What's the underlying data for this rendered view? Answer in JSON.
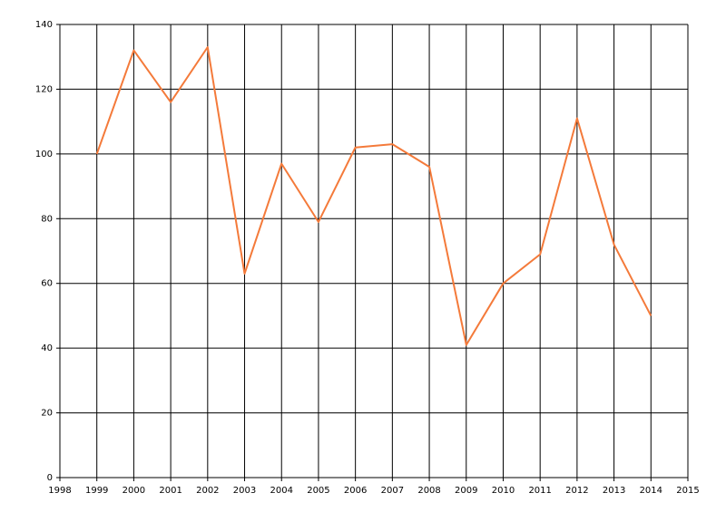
{
  "chart_data": {
    "type": "line",
    "x": [
      1999,
      2000,
      2001,
      2002,
      2003,
      2004,
      2005,
      2006,
      2007,
      2008,
      2009,
      2010,
      2011,
      2012,
      2013,
      2014
    ],
    "series": [
      {
        "color": "#f47a3a",
        "values": [
          100,
          132,
          116,
          133,
          63,
          97,
          79,
          102,
          103,
          96,
          41,
          60,
          69,
          111,
          72,
          50
        ]
      }
    ],
    "xlim": [
      1998,
      2015
    ],
    "xticks": [
      1998,
      1999,
      2000,
      2001,
      2002,
      2003,
      2004,
      2005,
      2006,
      2007,
      2008,
      2009,
      2010,
      2011,
      2012,
      2013,
      2014,
      2015
    ],
    "ylim": [
      0,
      140
    ],
    "yticks": [
      0,
      20,
      40,
      60,
      80,
      100,
      120,
      140
    ],
    "grid": true
  }
}
